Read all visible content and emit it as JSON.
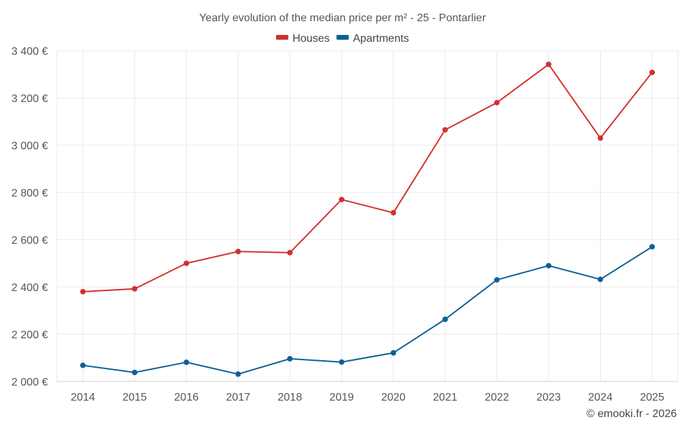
{
  "chart_data": {
    "type": "line",
    "title": "Yearly evolution of the median price per m² - 25 - Pontarlier",
    "categories": [
      "2014",
      "2015",
      "2016",
      "2017",
      "2018",
      "2019",
      "2020",
      "2021",
      "2022",
      "2023",
      "2024",
      "2025"
    ],
    "series": [
      {
        "name": "Houses",
        "color": "#d32f2f",
        "values": [
          2380,
          2392,
          2500,
          2550,
          2545,
          2770,
          2714,
          3065,
          3180,
          3342,
          3030,
          3308
        ]
      },
      {
        "name": "Apartments",
        "color": "#0a6196",
        "values": [
          2068,
          2038,
          2081,
          2031,
          2096,
          2082,
          2121,
          2263,
          2430,
          2490,
          2432,
          2570
        ]
      }
    ],
    "xlabel": "",
    "ylabel": "",
    "ylim": [
      2000,
      3400
    ],
    "yticks": [
      2000,
      2200,
      2400,
      2600,
      2800,
      3000,
      3200,
      3400
    ],
    "ytick_labels": [
      "2 000 €",
      "2 200 €",
      "2 400 €",
      "2 600 €",
      "2 800 €",
      "3 000 €",
      "3 200 €",
      "3 400 €"
    ],
    "grid": true,
    "legend_position": "top-center"
  },
  "copyright": "© emooki.fr - 2026"
}
